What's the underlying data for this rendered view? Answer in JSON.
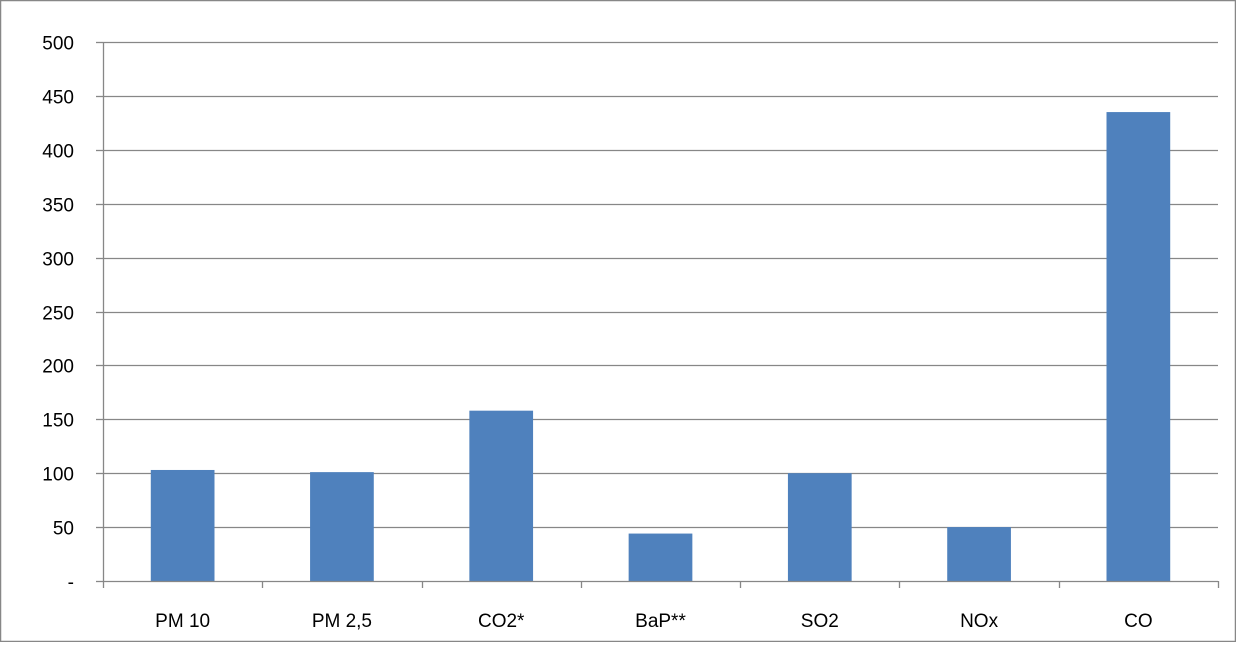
{
  "chart_data": {
    "type": "bar",
    "categories": [
      "PM 10",
      "PM 2,5",
      "CO2*",
      "BaP**",
      "SO2",
      "NOx",
      "CO"
    ],
    "values": [
      103,
      101,
      158,
      44,
      100,
      50,
      435
    ],
    "ylim": [
      0,
      500
    ],
    "yticks": [
      0,
      50,
      100,
      150,
      200,
      250,
      300,
      350,
      400,
      450,
      500
    ],
    "ytick_labels": [
      "-",
      "50",
      "100",
      "150",
      "200",
      "250",
      "300",
      "350",
      "400",
      "450",
      "500"
    ],
    "grid": true,
    "legend": "none",
    "bar_color": "#4f81bd",
    "grid_color": "#878787",
    "axis_color": "#878787",
    "border_color": "#878787"
  }
}
